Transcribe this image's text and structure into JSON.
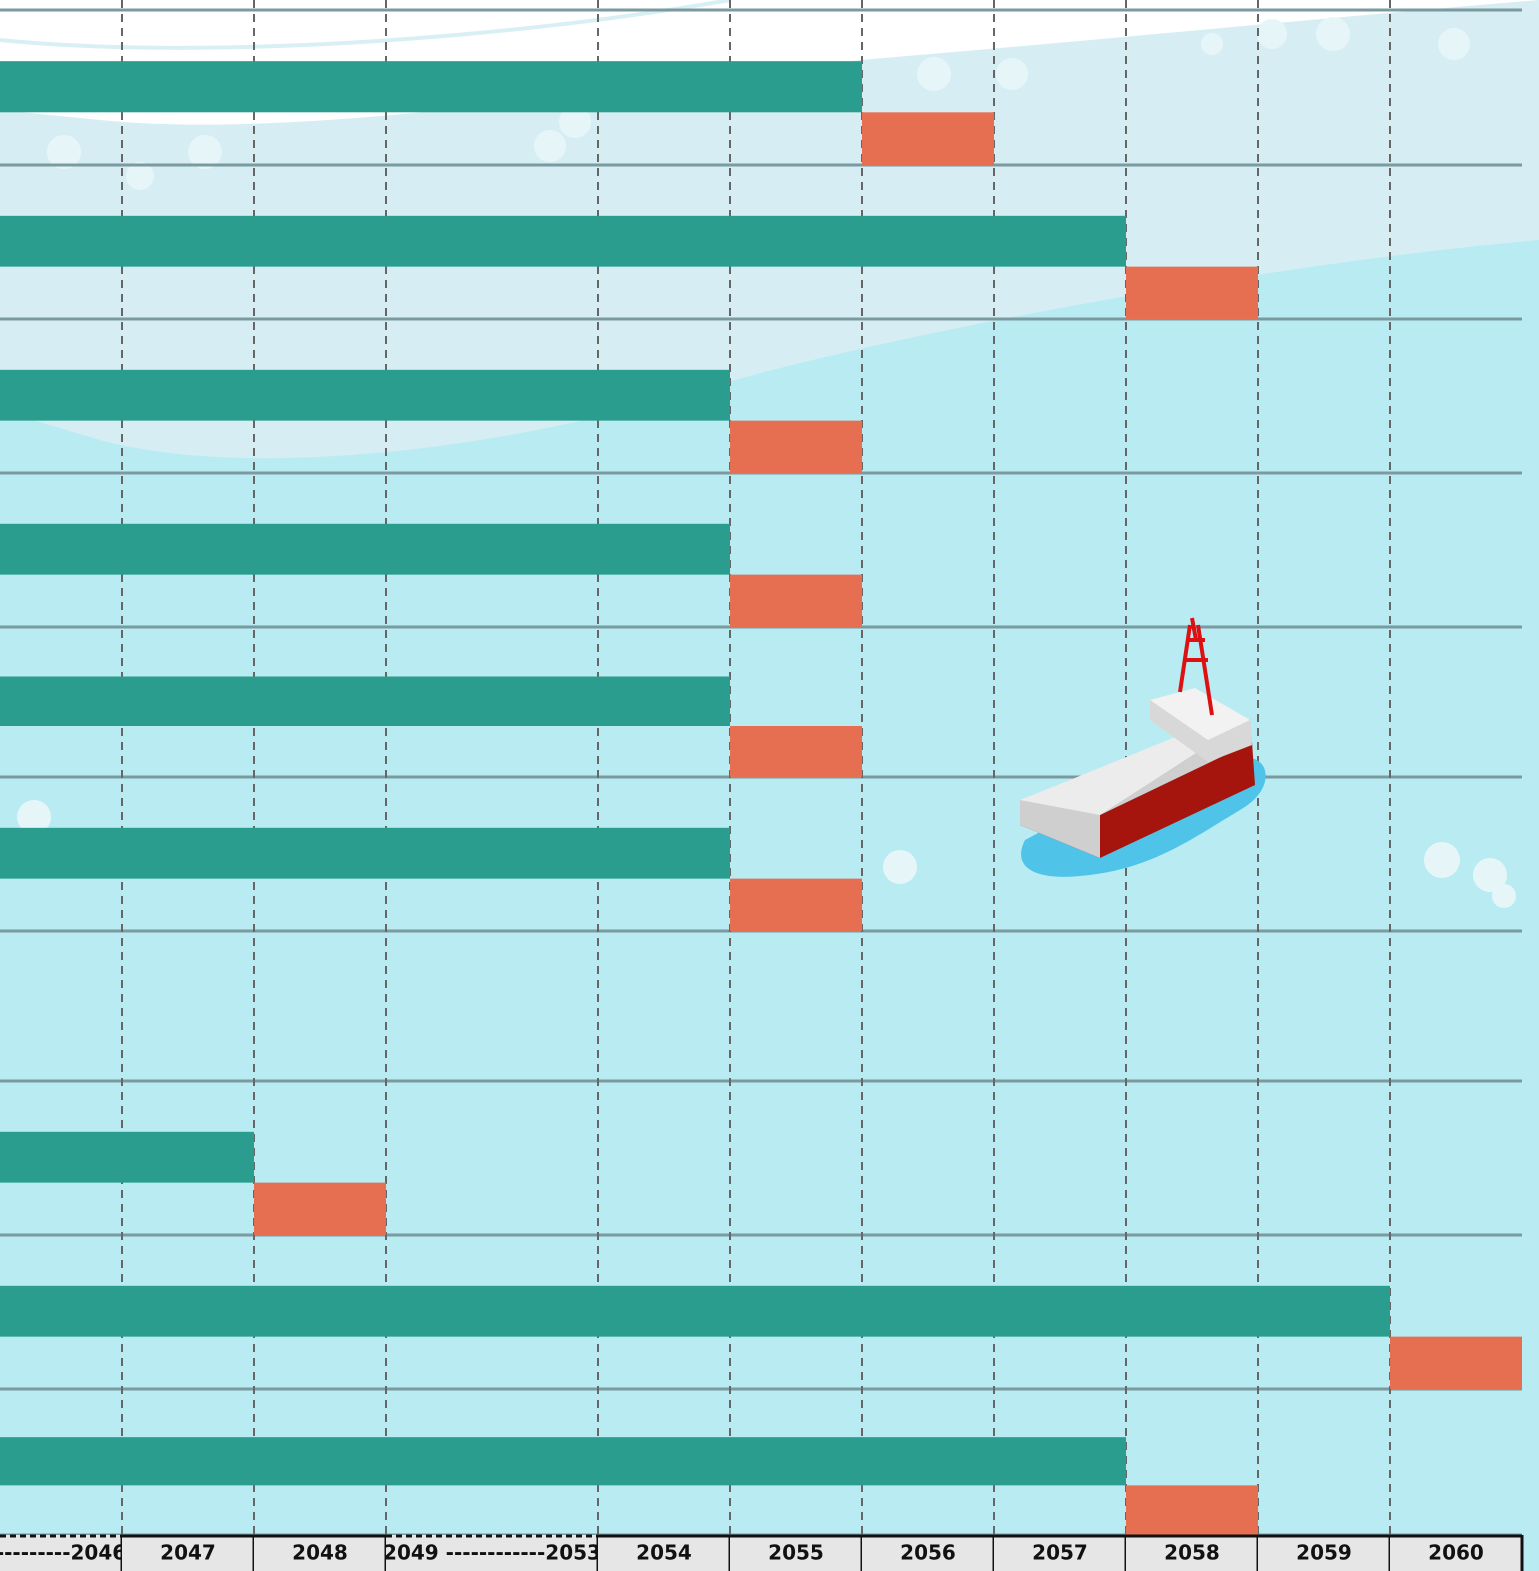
{
  "chart_data": {
    "type": "gantt",
    "categories": [
      "---------2046",
      "2047",
      "2048",
      "2049 ------------2053",
      "2054",
      "2055",
      "2056",
      "2057",
      "2058",
      "2059",
      "2060"
    ],
    "rows": [
      "2056",
      "2058",
      "2055",
      "2055",
      "2055",
      "2055",
      null,
      "2048",
      "2060",
      "2058"
    ],
    "colors": {
      "before": "#2a9d8f",
      "at": "#e76f51"
    },
    "grid": true
  }
}
